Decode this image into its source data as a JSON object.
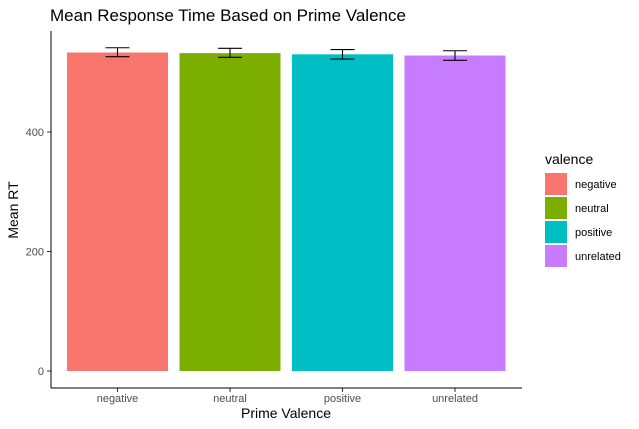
{
  "chart_data": {
    "type": "bar",
    "title": "Mean Response Time Based on Prime Valence",
    "xlabel": "Prime Valence",
    "ylabel": "Mean RT",
    "categories": [
      "negative",
      "neutral",
      "positive",
      "unrelated"
    ],
    "values": [
      533,
      532,
      530,
      528
    ],
    "error_low": [
      526,
      525,
      522,
      520
    ],
    "error_high": [
      541,
      540,
      538,
      536
    ],
    "colors": [
      "#F8766D",
      "#7CAE00",
      "#00BFC4",
      "#C77CFF"
    ],
    "ylim": [
      0,
      560
    ],
    "yticks": [
      0,
      200,
      400
    ],
    "grid": false,
    "legend": {
      "title": "valence",
      "position": "right",
      "entries": [
        "negative",
        "neutral",
        "positive",
        "unrelated"
      ]
    }
  }
}
